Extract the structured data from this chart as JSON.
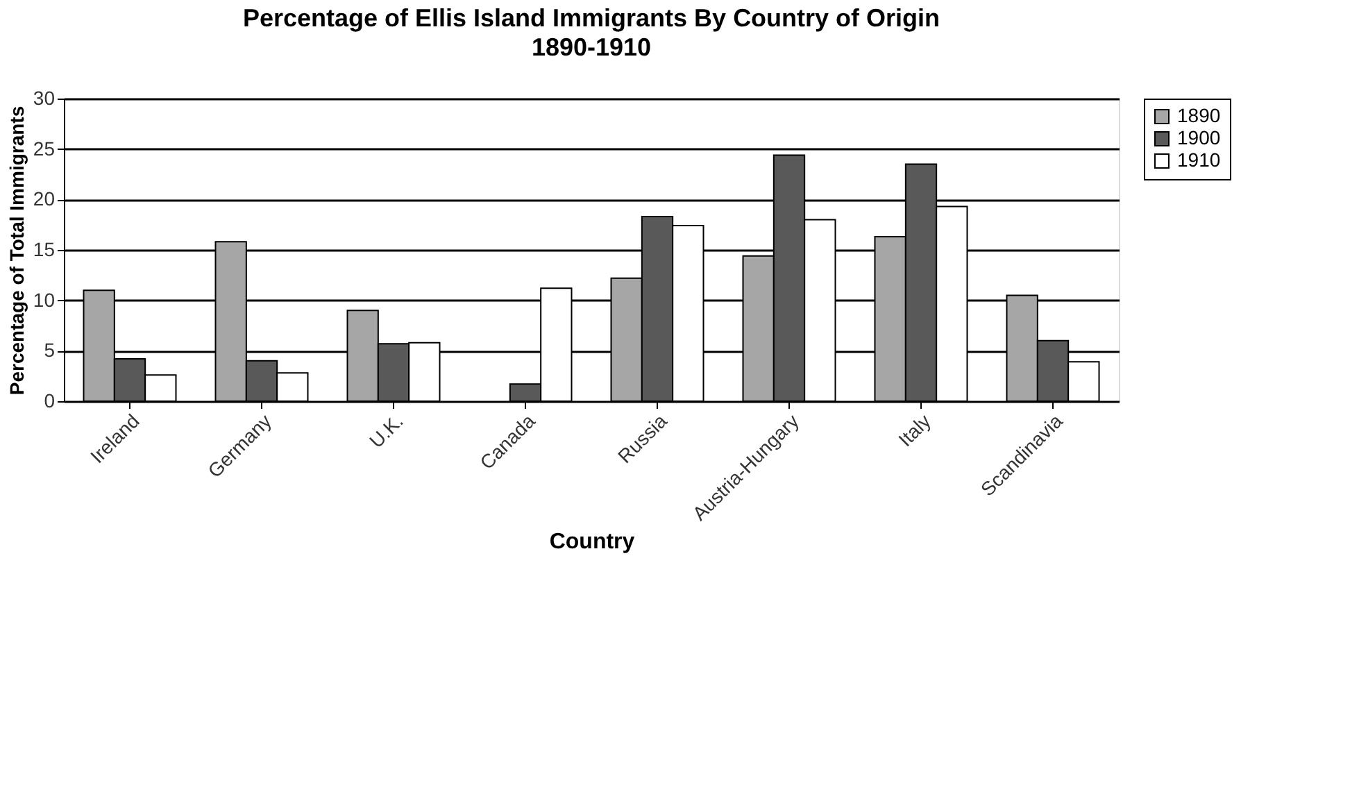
{
  "chart_data": {
    "type": "bar",
    "title": "Percentage of Ellis Island Immigrants By Country of Origin",
    "subtitle": "1890-1910",
    "xlabel": "Country",
    "ylabel": "Percentage of Total Immigrants",
    "categories": [
      "Ireland",
      "Germany",
      "U.K.",
      "Canada",
      "Russia",
      "Austria-Hungary",
      "Italy",
      "Scandinavia"
    ],
    "series": [
      {
        "name": "1890",
        "color": "#a6a6a6",
        "values": [
          11.0,
          15.8,
          9.0,
          null,
          12.2,
          14.4,
          16.3,
          10.5
        ]
      },
      {
        "name": "1900",
        "color": "#595959",
        "values": [
          4.2,
          4.0,
          5.7,
          1.7,
          18.3,
          24.4,
          23.5,
          6.0
        ]
      },
      {
        "name": "1910",
        "color": "#ffffff",
        "values": [
          2.6,
          2.8,
          5.8,
          11.2,
          17.4,
          18.0,
          19.3,
          3.9
        ]
      }
    ],
    "ylim": [
      0,
      30
    ],
    "yticks": [
      0,
      5,
      10,
      15,
      20,
      25,
      30
    ],
    "grid": "y",
    "legend": "right"
  }
}
